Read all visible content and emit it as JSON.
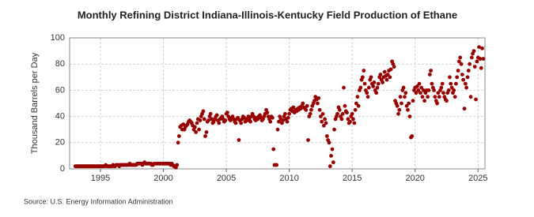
{
  "chart_data": {
    "type": "scatter",
    "title": "Monthly Refining District Indiana-Illinois-Kentucky Field Production of Ethane",
    "y_label": "Thousand Barrels per Day",
    "source": "Source: U.S. Energy Information Administration",
    "xlim": [
      1992.55,
      2025.55
    ],
    "xticks": [
      1995,
      2000,
      2005,
      2010,
      2015,
      2020,
      2025
    ],
    "ylim": [
      0,
      100
    ],
    "yticks": [
      0,
      20,
      40,
      60,
      80,
      100
    ],
    "grid": true,
    "color": "#990000",
    "x": [
      1993.0,
      1993.08,
      1993.17,
      1993.25,
      1993.33,
      1993.42,
      1993.5,
      1993.58,
      1993.67,
      1993.75,
      1993.83,
      1993.92,
      1994.0,
      1994.08,
      1994.17,
      1994.25,
      1994.33,
      1994.42,
      1994.5,
      1994.58,
      1994.67,
      1994.75,
      1994.83,
      1994.92,
      1995.0,
      1995.08,
      1995.17,
      1995.25,
      1995.33,
      1995.42,
      1995.5,
      1995.58,
      1995.67,
      1995.75,
      1995.83,
      1995.92,
      1996.0,
      1996.08,
      1996.17,
      1996.25,
      1996.33,
      1996.42,
      1996.5,
      1996.58,
      1996.67,
      1996.75,
      1996.83,
      1996.92,
      1997.0,
      1997.08,
      1997.17,
      1997.25,
      1997.33,
      1997.42,
      1997.5,
      1997.58,
      1997.67,
      1997.75,
      1997.83,
      1997.92,
      1998.0,
      1998.08,
      1998.17,
      1998.25,
      1998.33,
      1998.42,
      1998.5,
      1998.58,
      1998.67,
      1998.75,
      1998.83,
      1998.92,
      1999.0,
      1999.08,
      1999.17,
      1999.25,
      1999.33,
      1999.42,
      1999.5,
      1999.58,
      1999.67,
      1999.75,
      1999.83,
      1999.92,
      2000.0,
      2000.08,
      2000.17,
      2000.25,
      2000.33,
      2000.42,
      2000.5,
      2000.58,
      2000.67,
      2000.75,
      2000.83,
      2000.92,
      2001.0,
      2001.08,
      2001.17,
      2001.25,
      2001.33,
      2001.42,
      2001.5,
      2001.58,
      2001.67,
      2001.75,
      2001.83,
      2001.92,
      2002.0,
      2002.08,
      2002.17,
      2002.25,
      2002.33,
      2002.42,
      2002.5,
      2002.58,
      2002.67,
      2002.75,
      2002.83,
      2002.92,
      2003.0,
      2003.08,
      2003.17,
      2003.25,
      2003.33,
      2003.42,
      2003.5,
      2003.58,
      2003.67,
      2003.75,
      2003.83,
      2003.92,
      2004.0,
      2004.08,
      2004.17,
      2004.25,
      2004.33,
      2004.42,
      2004.5,
      2004.58,
      2004.67,
      2004.75,
      2004.83,
      2004.92,
      2005.0,
      2005.08,
      2005.17,
      2005.25,
      2005.33,
      2005.42,
      2005.5,
      2005.58,
      2005.67,
      2005.75,
      2005.83,
      2005.92,
      2006.0,
      2006.08,
      2006.17,
      2006.25,
      2006.33,
      2006.42,
      2006.5,
      2006.58,
      2006.67,
      2006.75,
      2006.83,
      2006.92,
      2007.0,
      2007.08,
      2007.17,
      2007.25,
      2007.33,
      2007.42,
      2007.5,
      2007.58,
      2007.67,
      2007.75,
      2007.83,
      2007.92,
      2008.0,
      2008.08,
      2008.17,
      2008.25,
      2008.33,
      2008.42,
      2008.5,
      2008.58,
      2008.67,
      2008.75,
      2008.83,
      2008.92,
      2009.0,
      2009.08,
      2009.17,
      2009.25,
      2009.33,
      2009.42,
      2009.5,
      2009.58,
      2009.67,
      2009.75,
      2009.83,
      2009.92,
      2010.0,
      2010.08,
      2010.17,
      2010.25,
      2010.33,
      2010.42,
      2010.5,
      2010.58,
      2010.67,
      2010.75,
      2010.83,
      2010.92,
      2011.0,
      2011.08,
      2011.17,
      2011.25,
      2011.33,
      2011.42,
      2011.5,
      2011.58,
      2011.67,
      2011.75,
      2011.83,
      2011.92,
      2012.0,
      2012.08,
      2012.17,
      2012.25,
      2012.33,
      2012.42,
      2012.5,
      2012.58,
      2012.67,
      2012.75,
      2012.83,
      2012.92,
      2013.0,
      2013.08,
      2013.17,
      2013.25,
      2013.33,
      2013.42,
      2013.5,
      2013.58,
      2013.67,
      2013.75,
      2013.83,
      2013.92,
      2014.0,
      2014.08,
      2014.17,
      2014.25,
      2014.33,
      2014.42,
      2014.5,
      2014.58,
      2014.67,
      2014.75,
      2014.83,
      2014.92,
      2015.0,
      2015.08,
      2015.17,
      2015.25,
      2015.33,
      2015.42,
      2015.5,
      2015.58,
      2015.67,
      2015.75,
      2015.83,
      2015.92,
      2016.0,
      2016.08,
      2016.17,
      2016.25,
      2016.33,
      2016.42,
      2016.5,
      2016.58,
      2016.67,
      2016.75,
      2016.83,
      2016.92,
      2017.0,
      2017.08,
      2017.17,
      2017.25,
      2017.33,
      2017.42,
      2017.5,
      2017.58,
      2017.67,
      2017.75,
      2017.83,
      2017.92,
      2018.0,
      2018.08,
      2018.17,
      2018.25,
      2018.33,
      2018.42,
      2018.5,
      2018.58,
      2018.67,
      2018.75,
      2018.83,
      2018.92,
      2019.0,
      2019.08,
      2019.17,
      2019.25,
      2019.33,
      2019.42,
      2019.5,
      2019.58,
      2019.67,
      2019.75,
      2019.83,
      2019.92,
      2020.0,
      2020.08,
      2020.17,
      2020.25,
      2020.33,
      2020.42,
      2020.5,
      2020.58,
      2020.67,
      2020.75,
      2020.83,
      2020.92,
      2021.0,
      2021.08,
      2021.17,
      2021.25,
      2021.33,
      2021.42,
      2021.5,
      2021.58,
      2021.67,
      2021.75,
      2021.83,
      2021.92,
      2022.0,
      2022.08,
      2022.17,
      2022.25,
      2022.33,
      2022.42,
      2022.5,
      2022.58,
      2022.67,
      2022.75,
      2022.83,
      2022.92,
      2023.0,
      2023.08,
      2023.17,
      2023.25,
      2023.33,
      2023.42,
      2023.5,
      2023.58,
      2023.67,
      2023.75,
      2023.83,
      2023.92,
      2024.0,
      2024.08,
      2024.17,
      2024.25,
      2024.33,
      2024.42,
      2024.5,
      2024.58,
      2024.67,
      2024.75,
      2024.83,
      2024.92,
      2025.0,
      2025.08,
      2025.17,
      2025.25,
      2025.33,
      2025.42
    ],
    "values": [
      2,
      2,
      2,
      2,
      2,
      2,
      2,
      2,
      2,
      2,
      2,
      2,
      2,
      2,
      2,
      2,
      2,
      2,
      2,
      2,
      2,
      2,
      2,
      2,
      2,
      2,
      2,
      2,
      2,
      3,
      2,
      2,
      2,
      2,
      2,
      2,
      3,
      2,
      2,
      3,
      3,
      3,
      2,
      3,
      3,
      3,
      3,
      3,
      3,
      3,
      3,
      3,
      4,
      3,
      3,
      3,
      3,
      3,
      3,
      4,
      4,
      4,
      4,
      4,
      3,
      4,
      5,
      4,
      4,
      4,
      4,
      4,
      4,
      3,
      3,
      4,
      4,
      4,
      4,
      4,
      4,
      4,
      4,
      4,
      4,
      4,
      4,
      4,
      4,
      4,
      4,
      3,
      4,
      3,
      2,
      2,
      1,
      3,
      20,
      25,
      32,
      33,
      30,
      34,
      30,
      32,
      33,
      34,
      36,
      37,
      36,
      35,
      33,
      30,
      32,
      28,
      35,
      38,
      30,
      37,
      40,
      42,
      44,
      38,
      25,
      28,
      36,
      37,
      40,
      42,
      38,
      35,
      36,
      38,
      40,
      41,
      37,
      35,
      38,
      39,
      40,
      38,
      36,
      37,
      42,
      43,
      40,
      38,
      37,
      39,
      40,
      38,
      36,
      35,
      38,
      39,
      22,
      37,
      35,
      38,
      40,
      39,
      36,
      38,
      37,
      40,
      38,
      36,
      40,
      42,
      40,
      38,
      37,
      39,
      38,
      40,
      41,
      39,
      37,
      38,
      40,
      42,
      45,
      43,
      40,
      38,
      36,
      40,
      39,
      15,
      3,
      3,
      3,
      30,
      36,
      40,
      38,
      35,
      37,
      40,
      42,
      38,
      36,
      39,
      42,
      45,
      46,
      44,
      47,
      43,
      45,
      44,
      46,
      45,
      47,
      46,
      48,
      50,
      47,
      46,
      45,
      48,
      22,
      40,
      42,
      45,
      48,
      50,
      52,
      55,
      53,
      50,
      54,
      45,
      40,
      36,
      42,
      33,
      38,
      35,
      25,
      22,
      20,
      2,
      10,
      15,
      5,
      30,
      38,
      40,
      42,
      47,
      45,
      40,
      38,
      42,
      62,
      48,
      44,
      43,
      38,
      35,
      36,
      40,
      42,
      38,
      35,
      45,
      50,
      55,
      48,
      60,
      62,
      68,
      70,
      75,
      65,
      60,
      58,
      55,
      62,
      68,
      70,
      65,
      63,
      66,
      60,
      58,
      62,
      65,
      70,
      72,
      68,
      66,
      70,
      74,
      71,
      68,
      72,
      75,
      70,
      76,
      82,
      80,
      78,
      52,
      50,
      48,
      42,
      45,
      55,
      50,
      60,
      62,
      55,
      58,
      48,
      45,
      50,
      40,
      24,
      25,
      52,
      60,
      62,
      58,
      63,
      60,
      65,
      58,
      62,
      55,
      60,
      52,
      58,
      60,
      55,
      60,
      72,
      75,
      65,
      62,
      60,
      55,
      52,
      50,
      58,
      55,
      60,
      62,
      65,
      58,
      55,
      53,
      52,
      58,
      60,
      70,
      65,
      62,
      58,
      60,
      55,
      65,
      70,
      75,
      82,
      85,
      80,
      72,
      68,
      46,
      65,
      62,
      70,
      75,
      80,
      55,
      85,
      88,
      90,
      78,
      53,
      82,
      85,
      93,
      84,
      77,
      92,
      84
    ]
  }
}
